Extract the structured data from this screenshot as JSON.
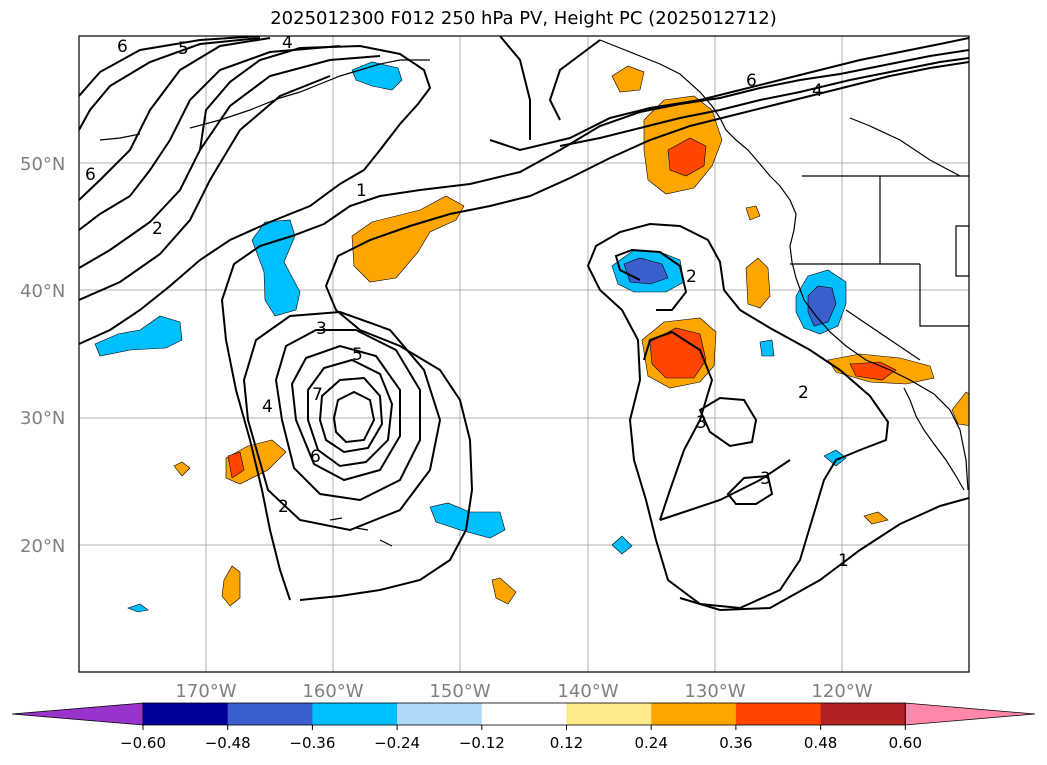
{
  "title": "2025012300 F012 250 hPa PV, Height PC (2025012712)",
  "lat_labels": [
    "50°N",
    "40°N",
    "30°N",
    "20°N"
  ],
  "lon_labels": [
    "170°W",
    "160°W",
    "150°W",
    "140°W",
    "130°W",
    "120°W"
  ],
  "colorbar": {
    "ticks": [
      "−0.60",
      "−0.48",
      "−0.36",
      "−0.24",
      "−0.12",
      "0.12",
      "0.24",
      "0.36",
      "0.48",
      "0.60"
    ],
    "colors": [
      "#9933cc",
      "#000099",
      "#3a5fcd",
      "#00bfff",
      "#add8f7",
      "#ffffff",
      "#ffe98a",
      "#ffa500",
      "#ff4500",
      "#b22222",
      "#ff88aa"
    ]
  },
  "contour_labels": [
    "6",
    "5",
    "4",
    "6",
    "2",
    "1",
    "3",
    "5",
    "7",
    "4",
    "6",
    "2",
    "2",
    "2",
    "3",
    "3",
    "1",
    "6",
    "4"
  ],
  "map_extent": {
    "lon_min": -180,
    "lon_max": -110,
    "lat_min": 10,
    "lat_max": 60
  },
  "grid": true
}
